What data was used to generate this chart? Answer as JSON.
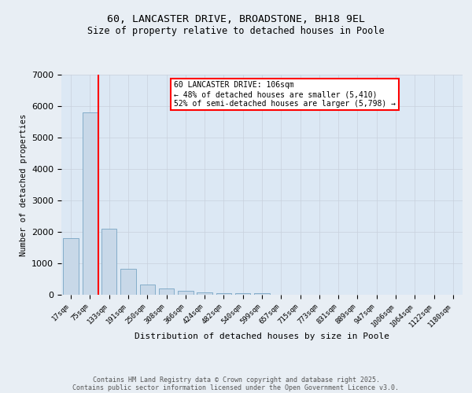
{
  "title1": "60, LANCASTER DRIVE, BROADSTONE, BH18 9EL",
  "title2": "Size of property relative to detached houses in Poole",
  "xlabel": "Distribution of detached houses by size in Poole",
  "ylabel": "Number of detached properties",
  "bar_labels": [
    "17sqm",
    "75sqm",
    "133sqm",
    "191sqm",
    "250sqm",
    "308sqm",
    "366sqm",
    "424sqm",
    "482sqm",
    "540sqm",
    "599sqm",
    "657sqm",
    "715sqm",
    "773sqm",
    "831sqm",
    "889sqm",
    "947sqm",
    "1006sqm",
    "1064sqm",
    "1122sqm",
    "1180sqm"
  ],
  "bar_values": [
    1800,
    5800,
    2100,
    820,
    330,
    200,
    130,
    80,
    60,
    50,
    40,
    5,
    5,
    0,
    0,
    0,
    0,
    0,
    0,
    0,
    0
  ],
  "bar_color": "#c8d8e8",
  "bar_edge_color": "#6699bb",
  "grid_color": "#c8d0dc",
  "bg_color": "#dce8f4",
  "fig_bg_color": "#e8eef4",
  "red_line_x": 1.45,
  "annotation_title": "60 LANCASTER DRIVE: 106sqm",
  "annotation_line1": "← 48% of detached houses are smaller (5,410)",
  "annotation_line2": "52% of semi-detached houses are larger (5,798) →",
  "annotation_box_color": "#cc0000",
  "ylim": [
    0,
    7000
  ],
  "yticks": [
    0,
    1000,
    2000,
    3000,
    4000,
    5000,
    6000,
    7000
  ],
  "footer1": "Contains HM Land Registry data © Crown copyright and database right 2025.",
  "footer2": "Contains public sector information licensed under the Open Government Licence v3.0."
}
